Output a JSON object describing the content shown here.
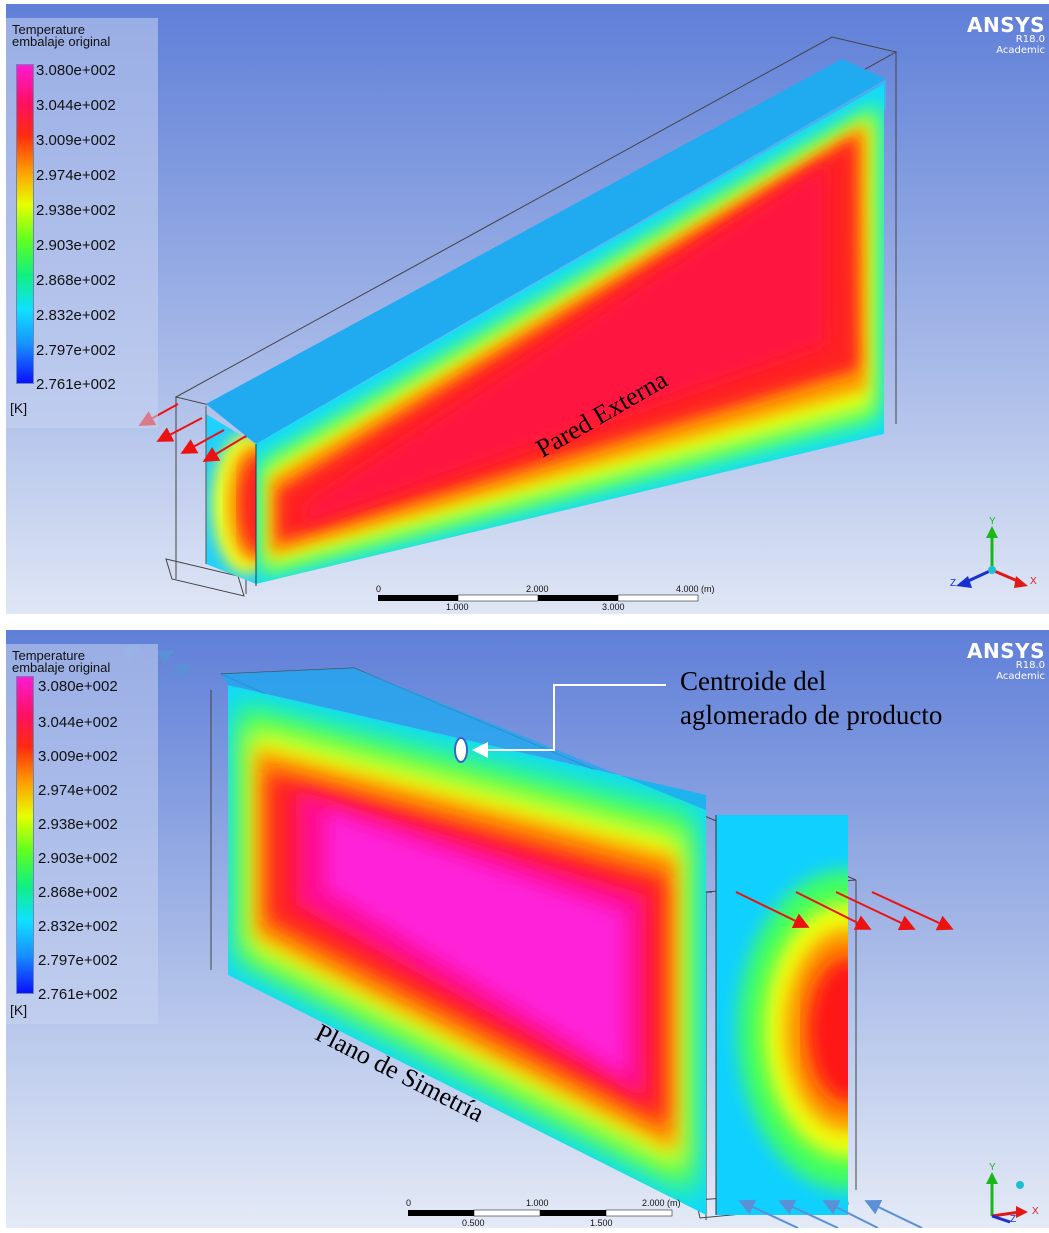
{
  "panels": {
    "top": {
      "legend": {
        "title_line1": "Temperature",
        "title_line2": "embalaje original",
        "labels": [
          "3.080e+002",
          "3.044e+002",
          "3.009e+002",
          "2.974e+002",
          "2.938e+002",
          "2.903e+002",
          "2.868e+002",
          "2.832e+002",
          "2.797e+002",
          "2.761e+002"
        ],
        "unit": "[K]"
      },
      "branding": {
        "name": "ANSYS",
        "version": "R18.0",
        "edition": "Academic"
      },
      "annotation": "Pared Externa",
      "scale": {
        "ticks_top": [
          "0",
          "2.000",
          "4.000 (m)"
        ],
        "ticks_bottom": [
          "1.000",
          "3.000"
        ]
      },
      "axes": {
        "y": "Y",
        "x": "X",
        "z": "Z"
      }
    },
    "bottom": {
      "legend": {
        "title_line1": "Temperature",
        "title_line2": "embalaje original",
        "labels": [
          "3.080e+002",
          "3.044e+002",
          "3.009e+002",
          "2.974e+002",
          "2.938e+002",
          "2.903e+002",
          "2.868e+002",
          "2.832e+002",
          "2.797e+002",
          "2.761e+002"
        ],
        "unit": "[K]"
      },
      "branding": {
        "name": "ANSYS",
        "version": "R18.0",
        "edition": "Academic"
      },
      "annotation": "Plano de Simetría",
      "callout_line1": "Centroide del",
      "callout_line2": "aglomerado de producto",
      "scale": {
        "ticks_top": [
          "0",
          "1.000",
          "2.000 (m)"
        ],
        "ticks_bottom": [
          "0.500",
          "1.500"
        ]
      },
      "axes": {
        "y": "Y",
        "x": "X",
        "z": "Z"
      }
    }
  },
  "colors": {
    "background_top": "#5f7fd8",
    "background_bottom": "#dbe3f3",
    "hot": "#ff10c8",
    "warm": "#ff1030",
    "cold": "#0a1cff",
    "heat_arrow": "#ee1111",
    "flow_arrow": "#5b8fd6"
  }
}
